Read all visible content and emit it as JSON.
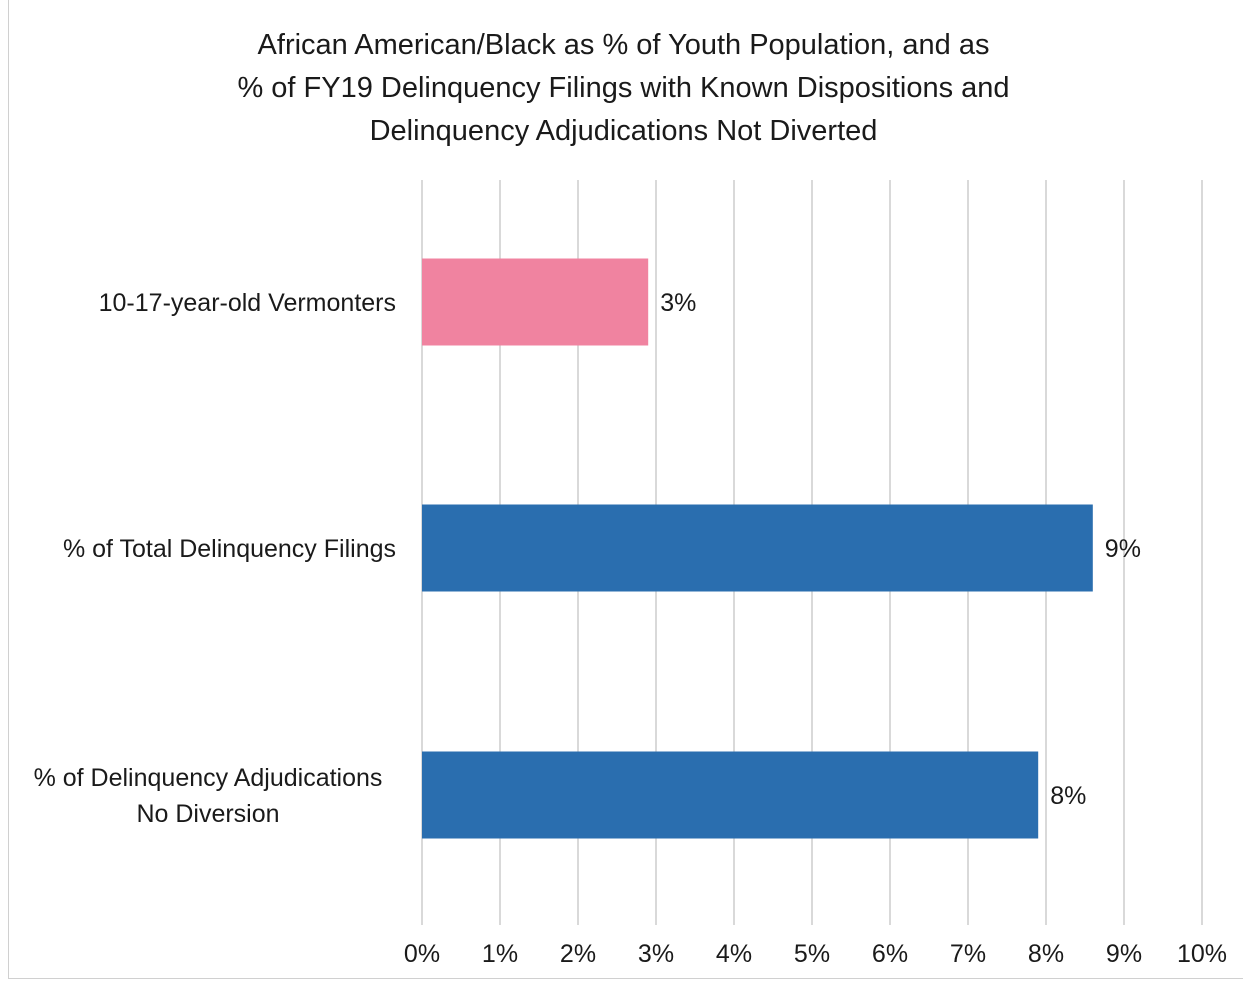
{
  "chart_data": {
    "type": "bar",
    "orientation": "horizontal",
    "title_lines": [
      "African American/Black as % of Youth Population, and as",
      "% of FY19 Delinquency Filings with Known Dispositions and",
      "Delinquency Adjudications Not Diverted"
    ],
    "categories": [
      {
        "lines": [
          "10-17-year-old Vermonters"
        ]
      },
      {
        "lines": [
          "% of Total Delinquency Filings"
        ]
      },
      {
        "lines": [
          "% of Delinquency Adjudications",
          "No Diversion"
        ]
      }
    ],
    "values": [
      2.9,
      8.6,
      7.9
    ],
    "data_labels": [
      "3%",
      "9%",
      "8%"
    ],
    "bar_colors": [
      "#f083a0",
      "#2a6eaf",
      "#2a6eaf"
    ],
    "xlim": [
      0,
      10
    ],
    "ticks": [
      0,
      1,
      2,
      3,
      4,
      5,
      6,
      7,
      8,
      9,
      10
    ],
    "tick_labels": [
      "0%",
      "1%",
      "2%",
      "3%",
      "4%",
      "5%",
      "6%",
      "7%",
      "8%",
      "9%",
      "10%"
    ],
    "gridlines": true,
    "grid_color": "#d9d9d9",
    "legend": "none"
  }
}
